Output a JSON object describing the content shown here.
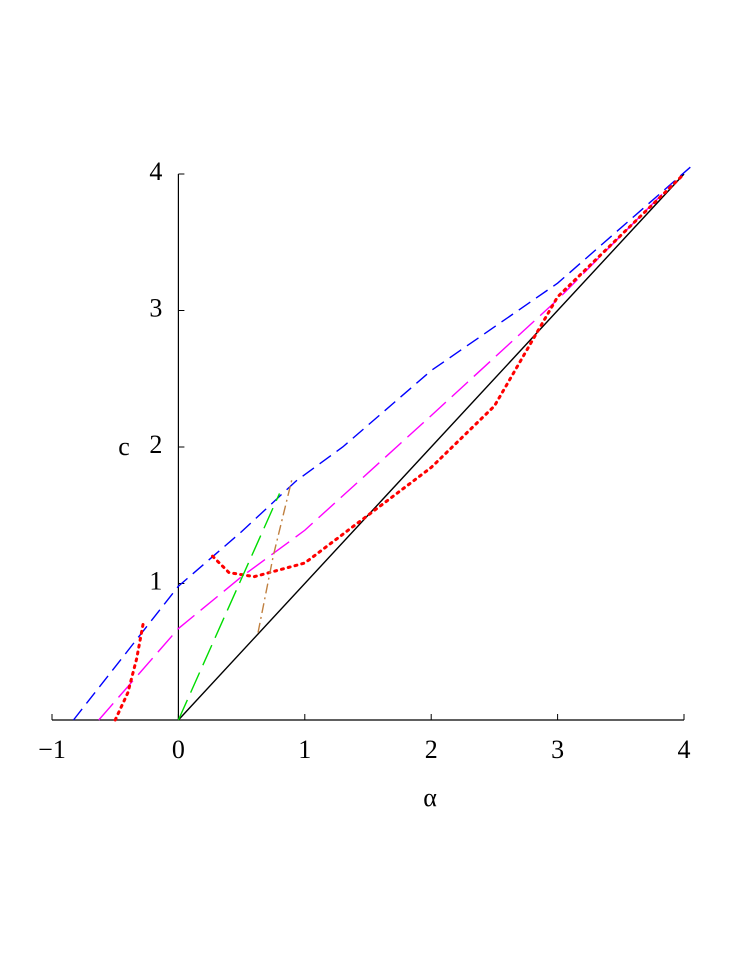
{
  "chart_data": {
    "type": "line",
    "x_label": "α",
    "y_label": "c",
    "xlim": [
      -1,
      4
    ],
    "ylim": [
      0,
      4
    ],
    "xticks": [
      {
        "value": -1,
        "label": "−1"
      },
      0,
      1,
      2,
      3,
      4
    ],
    "yticks": [
      1,
      2,
      3,
      4
    ],
    "series": [
      {
        "color": "#000000",
        "style": "solid",
        "x": [
          0,
          4
        ],
        "values": [
          0,
          4
        ]
      },
      {
        "color": "#0000ff",
        "style": "dash",
        "x": [
          -0.83,
          -0.5,
          0,
          0.5,
          0.93,
          1.3,
          2,
          3,
          4.05
        ],
        "values": [
          0,
          0.39,
          0.98,
          1.38,
          1.75,
          2.0,
          2.56,
          3.2,
          4.05
        ]
      },
      {
        "color": "#ff00ff",
        "style": "longdash",
        "x": [
          -0.63,
          0,
          0.5,
          1,
          2,
          3,
          3.9
        ],
        "values": [
          0,
          0.67,
          1.05,
          1.39,
          2.23,
          3.08,
          3.92
        ]
      },
      {
        "color": "#ff0000",
        "style": "dot",
        "x": [
          -0.5,
          -0.4,
          -0.33,
          -0.28
        ],
        "values": [
          0,
          0.2,
          0.45,
          0.7
        ]
      },
      {
        "color": "#ff0000",
        "style": "dot",
        "x": [
          0.27,
          0.4,
          0.6,
          1,
          1.5,
          2,
          2.5,
          3,
          3.5,
          4
        ],
        "values": [
          1.2,
          1.08,
          1.05,
          1.15,
          1.5,
          1.85,
          2.3,
          3.1,
          3.55,
          4.0
        ]
      },
      {
        "color": "#00dd00",
        "style": "longdash",
        "x": [
          0,
          0.8
        ],
        "values": [
          0,
          1.66
        ]
      },
      {
        "color": "#c08040",
        "style": "dashdot",
        "x": [
          0.63,
          0.75,
          0.9
        ],
        "values": [
          0.64,
          1.2,
          1.77
        ]
      }
    ]
  }
}
